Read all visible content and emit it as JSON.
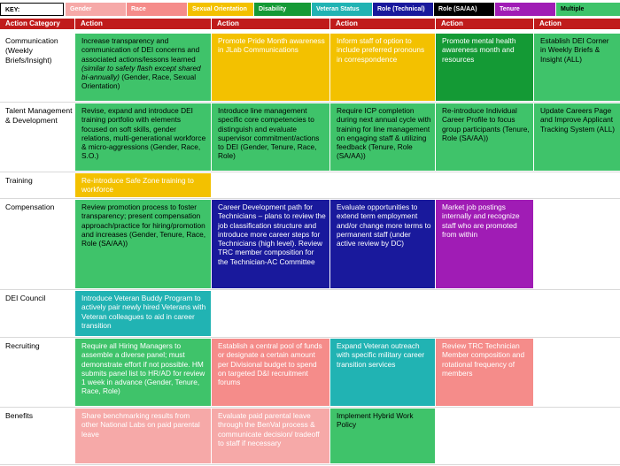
{
  "colors": {
    "gender": "#f7a3a3",
    "race": "#f68a8a",
    "sexual_orientation": "#f2c200",
    "disability": "#19a03a",
    "veteran_status": "#22b1b0",
    "role_technical": "#1a1aa6",
    "role_sa_aa": "#000000",
    "tenure": "#9f1bb5",
    "multiple": "#35c060",
    "header": "#c01b1b"
  },
  "key": {
    "label": "KEY:",
    "items": [
      {
        "label": "Gender",
        "color": "#f6a9a8",
        "text_color": "#ffffff"
      },
      {
        "label": "Race",
        "color": "#f58c8a",
        "text_color": "#ffffff"
      },
      {
        "label": "Sexual Orientation",
        "color": "#f3c100",
        "text_color": "#ffffff"
      },
      {
        "label": "Disability",
        "color": "#149a35",
        "text_color": "#ffffff"
      },
      {
        "label": "Veteran Status",
        "color": "#21b3b3",
        "text_color": "#ffffff"
      },
      {
        "label": "Role (Technical)",
        "color": "#19199c",
        "text_color": "#ffffff"
      },
      {
        "label": "Role (SA/AA)",
        "color": "#000000",
        "text_color": "#ffffff"
      },
      {
        "label": "Tenure",
        "color": "#a01cb5",
        "text_color": "#ffffff"
      },
      {
        "label": "Multiple",
        "color": "#3ec46a",
        "text_color": "#000000"
      }
    ]
  },
  "header": {
    "category": "Action Category",
    "action": "Action"
  },
  "rows": [
    {
      "category": "Communication (Weekly Briefs/Insight)",
      "cells": [
        {
          "text": "Increase transparency and communication of DEI concerns and associated actions/lessons learned ",
          "italic": "(similar to safety flash except shared bi-annually)",
          "tail": " (Gender, Race, Sexual Orientation)",
          "color": "#3fc36a",
          "text_color": "#000000"
        },
        {
          "text": "Promote Pride Month awareness in JLab Communications",
          "color": "#f3c100",
          "text_color": "#ffffff"
        },
        {
          "text": "Inform staff of option to include preferred pronouns in correspondence",
          "color": "#f3c100",
          "text_color": "#ffffff"
        },
        {
          "text": "Promote mental health awareness month and resources",
          "color": "#149a35",
          "text_color": "#ffffff"
        },
        {
          "text": "Establish DEI Corner in Weekly Briefs & Insight (ALL)",
          "color": "#3fc36a",
          "text_color": "#000000"
        }
      ]
    },
    {
      "category": "Talent Management & Development",
      "cells": [
        {
          "text": "Revise, expand and introduce DEI training portfolio with elements focused on soft skills, gender relations, multi-generational workforce & micro-aggressions (Gender, Race, S.O.)",
          "color": "#3fc36a",
          "text_color": "#000000"
        },
        {
          "text": "Introduce line management specific core competencies to distinguish and evaluate supervisor commitment/actions to DEI (Gender, Tenure, Race, Role)",
          "color": "#3fc36a",
          "text_color": "#000000"
        },
        {
          "text": "Require ICP completion during next annual cycle with training for line management on engaging staff & utilizing feedback (Tenure, Role (SA/AA))",
          "color": "#3fc36a",
          "text_color": "#000000"
        },
        {
          "text": "Re-introduce Individual Career Profile to focus group participants (Tenure, Role (SA/AA))",
          "color": "#3fc36a",
          "text_color": "#000000"
        },
        {
          "text": "Update Careers Page and Improve Applicant Tracking System (ALL)",
          "color": "#3fc36a",
          "text_color": "#000000"
        }
      ]
    },
    {
      "category": "Training",
      "cells": [
        {
          "text": "Re-introduce Safe Zone training to workforce",
          "color": "#f3c100",
          "text_color": "#ffffff"
        }
      ]
    },
    {
      "category": "Compensation",
      "cells": [
        {
          "text": "Review promotion process to foster transparency; present compensation approach/practice for hiring/promotion and increases (Gender, Tenure, Race, Role (SA/AA))",
          "color": "#3fc36a",
          "text_color": "#000000"
        },
        {
          "text": "Career Development path for Technicians – plans to review the job classification structure and introduce more career steps for Technicians (high level).  Review TRC member composition for the Technician-AC Committee",
          "color": "#19199c",
          "text_color": "#ffffff"
        },
        {
          "text": "Evaluate opportunities to extend term employment and/or change more terms to permanent staff (under active review by DC)",
          "color": "#19199c",
          "text_color": "#ffffff"
        },
        {
          "text": "Market job postings internally and recognize staff who are promoted from within",
          "color": "#a01cb5",
          "text_color": "#ffffff"
        }
      ]
    },
    {
      "category": "DEI Council",
      "cells": [
        {
          "text": "Introduce Veteran Buddy Program to actively pair newly hired Veterans with Veteran colleagues to aid in career transition",
          "color": "#21b3b3",
          "text_color": "#ffffff"
        }
      ]
    },
    {
      "category": "Recruiting",
      "cells": [
        {
          "text": "Require all Hiring Managers to assemble a diverse panel; must demonstrate effort if not possible. HM submits panel list to HR/AD for review 1 week in advance (Gender, Tenure, Race, Role)",
          "color": "#3fc36a",
          "text_color": "#ffffff"
        },
        {
          "text": "Establish a central pool of funds or designate a certain amount per Divisional budget to spend on targeted D&I recruitment forums",
          "color": "#f58c8a",
          "text_color": "#ffffff"
        },
        {
          "text": "Expand Veteran outreach with specific military career transition services",
          "color": "#21b3b3",
          "text_color": "#ffffff"
        },
        {
          "text": "Review TRC Technician Member composition and  rotational frequency of members",
          "color": "#f58c8a",
          "text_color": "#ffffff"
        }
      ]
    },
    {
      "category": "Benefits",
      "cells": [
        {
          "text": "Share benchmarking results from other National Labs on paid parental leave",
          "color": "#f6a9a8",
          "text_color": "#ffffff"
        },
        {
          "text": "Evaluate paid parental leave through the BenVal process & communicate decision/ tradeoff to staff if necessary",
          "color": "#f6a9a8",
          "text_color": "#ffffff"
        },
        {
          "text": "Implement Hybrid Work Policy",
          "color": "#3fc36a",
          "text_color": "#000000"
        }
      ]
    }
  ]
}
